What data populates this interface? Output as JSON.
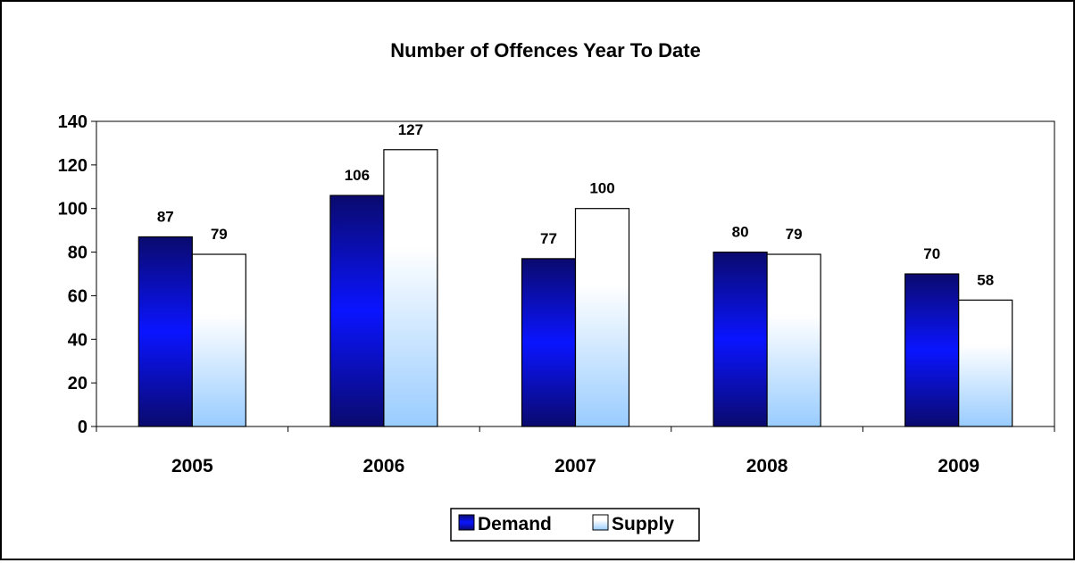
{
  "chart_data": {
    "type": "bar",
    "title": "Number of Offences Year To Date",
    "xlabel": "",
    "ylabel": "",
    "categories": [
      "2005",
      "2006",
      "2007",
      "2008",
      "2009"
    ],
    "series": [
      {
        "name": "Demand",
        "values": [
          87,
          106,
          77,
          80,
          70
        ]
      },
      {
        "name": "Supply",
        "values": [
          79,
          127,
          100,
          79,
          58
        ]
      }
    ],
    "ylim": [
      0,
      140
    ],
    "yticks": [
      0,
      20,
      40,
      60,
      80,
      100,
      120,
      140
    ],
    "grid": false,
    "legend_position": "bottom",
    "data_labels": true,
    "colors": {
      "Demand_dark": "#0a0a6e",
      "Demand_light": "#0a14ff",
      "Supply_light": "#ffffff",
      "Supply_dark": "#99ccff"
    }
  }
}
